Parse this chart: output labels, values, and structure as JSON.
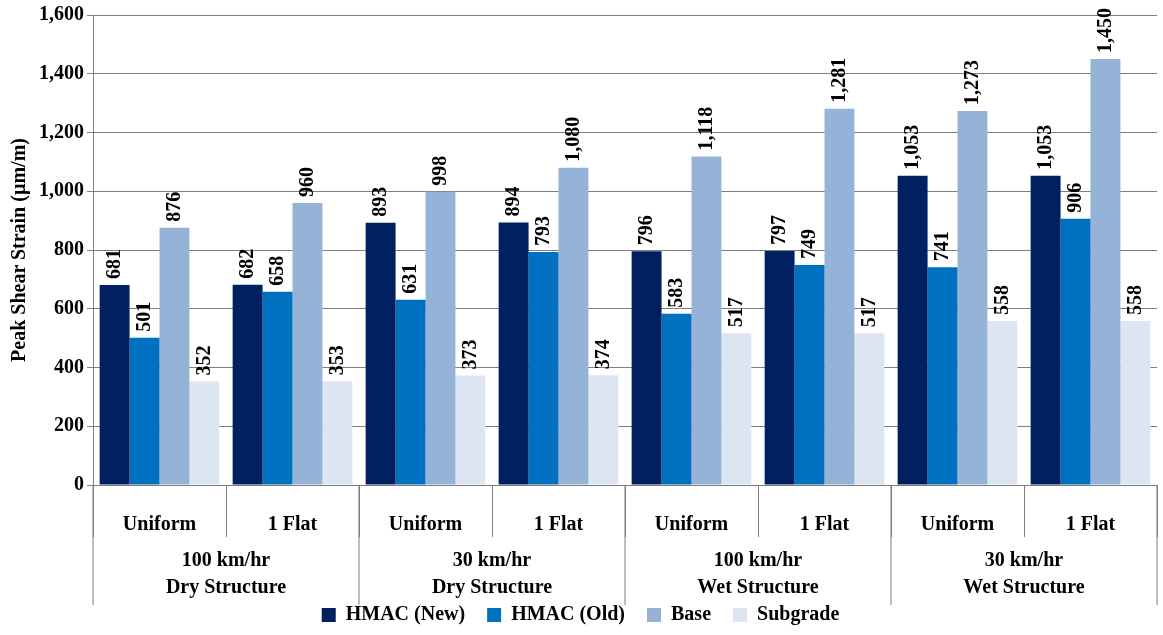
{
  "chart_data": {
    "type": "bar",
    "ylabel": "Peak Shear Strain (µm/m)",
    "categories": [
      "Uniform",
      "1 Flat",
      "Uniform",
      "1 Flat",
      "Uniform",
      "1 Flat",
      "Uniform",
      "1 Flat"
    ],
    "annotations": [
      "100 km/hr\nDry Structure",
      "30 km/hr\nDry Structure",
      "100 km/hr\nWet Structure",
      "30 km/hr\nWet Structure"
    ],
    "series": [
      {
        "name": "HMAC (New)",
        "color": "#002060",
        "values": [
          681,
          682,
          893,
          894,
          796,
          797,
          1053,
          1053
        ],
        "value_labels": [
          "681",
          "682",
          "893",
          "894",
          "796",
          "797",
          "1,053",
          "1,053"
        ]
      },
      {
        "name": "HMAC (Old)",
        "color": "#0070c0",
        "values": [
          501,
          658,
          631,
          793,
          583,
          749,
          741,
          906
        ],
        "value_labels": [
          "501",
          "658",
          "631",
          "793",
          "583",
          "749",
          "741",
          "906"
        ]
      },
      {
        "name": "Base",
        "color": "#95b3d7",
        "values": [
          876,
          960,
          998,
          1080,
          1118,
          1281,
          1273,
          1450
        ],
        "value_labels": [
          "876",
          "960",
          "998",
          "1,080",
          "1,118",
          "1,281",
          "1,273",
          "1,450"
        ]
      },
      {
        "name": "Subgrade",
        "color": "#dce6f2",
        "values": [
          352,
          353,
          373,
          374,
          517,
          517,
          558,
          558
        ],
        "value_labels": [
          "352",
          "353",
          "373",
          "374",
          "517",
          "517",
          "558",
          "558"
        ]
      }
    ],
    "ylim": [
      0,
      1600
    ],
    "yticks": [
      0,
      200,
      400,
      600,
      800,
      {
        "value": 1000,
        "label": "1,000"
      },
      {
        "value": 1200,
        "label": "1,200"
      },
      {
        "value": 1400,
        "label": "1,400"
      },
      {
        "value": 1600,
        "label": "1,600"
      }
    ],
    "grid": "y",
    "legend": "bottom"
  }
}
